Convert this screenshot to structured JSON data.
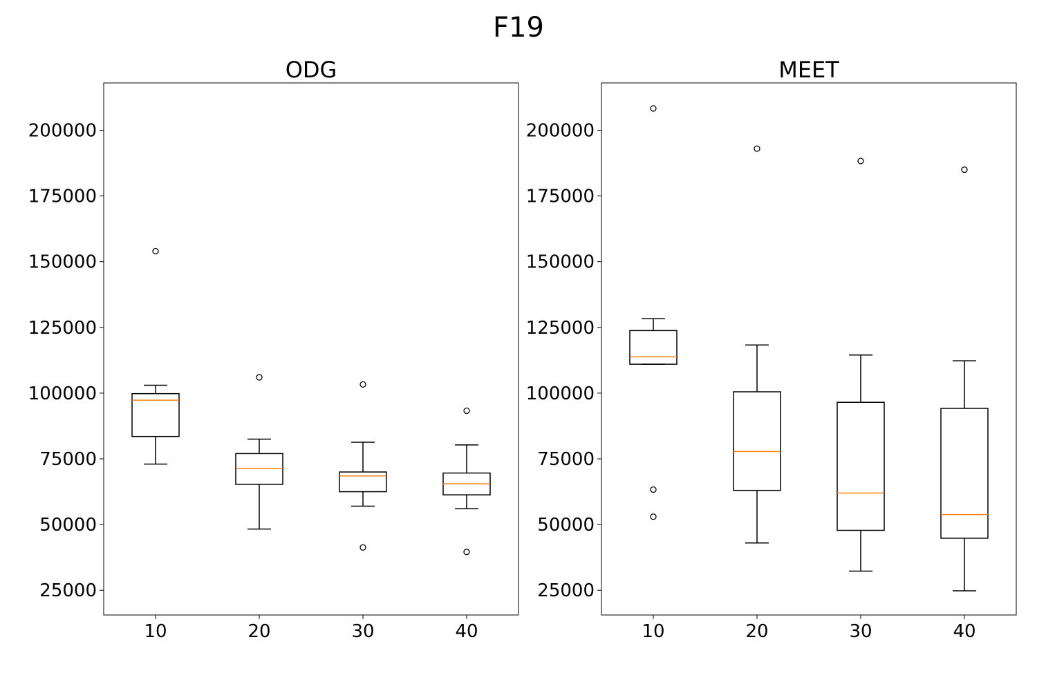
{
  "title": "F19",
  "chart_data": [
    {
      "type": "boxplot",
      "title": "ODG",
      "xlabel": "",
      "ylabel": "",
      "ylim": [
        15600,
        218000
      ],
      "yticks": [
        25000,
        50000,
        75000,
        100000,
        125000,
        150000,
        175000,
        200000
      ],
      "categories": [
        "10",
        "20",
        "30",
        "40"
      ],
      "boxes": [
        {
          "whislo": 73000,
          "q1": 83500,
          "med": 97300,
          "q3": 99800,
          "whishi": 103000,
          "fliers": [
            154000
          ]
        },
        {
          "whislo": 48300,
          "q1": 65300,
          "med": 71300,
          "q3": 77000,
          "whishi": 82500,
          "fliers": [
            106000
          ]
        },
        {
          "whislo": 57000,
          "q1": 62500,
          "med": 68500,
          "q3": 70000,
          "whishi": 81300,
          "fliers": [
            103300,
            41300
          ]
        },
        {
          "whislo": 56000,
          "q1": 61300,
          "med": 65500,
          "q3": 69600,
          "whishi": 80300,
          "fliers": [
            93300,
            39600
          ]
        }
      ]
    },
    {
      "type": "boxplot",
      "title": "MEET",
      "xlabel": "",
      "ylabel": "",
      "ylim": [
        15600,
        218000
      ],
      "yticks": [
        25000,
        50000,
        75000,
        100000,
        125000,
        150000,
        175000,
        200000
      ],
      "categories": [
        "10",
        "20",
        "30",
        "40"
      ],
      "boxes": [
        {
          "whislo": 111000,
          "q1": 111000,
          "med": 113800,
          "q3": 123800,
          "whishi": 128300,
          "fliers": [
            208300,
            63300,
            53000
          ]
        },
        {
          "whislo": 43000,
          "q1": 63000,
          "med": 77800,
          "q3": 100500,
          "whishi": 118300,
          "fliers": [
            193000
          ]
        },
        {
          "whislo": 32300,
          "q1": 47800,
          "med": 62000,
          "q3": 96500,
          "whishi": 114500,
          "fliers": [
            188300
          ]
        },
        {
          "whislo": 24800,
          "q1": 44800,
          "med": 53800,
          "q3": 94200,
          "whishi": 112300,
          "fliers": [
            185000
          ]
        }
      ]
    }
  ],
  "colors": {
    "box": "#000000",
    "median": "#ff7f0e",
    "background": "#ffffff"
  }
}
